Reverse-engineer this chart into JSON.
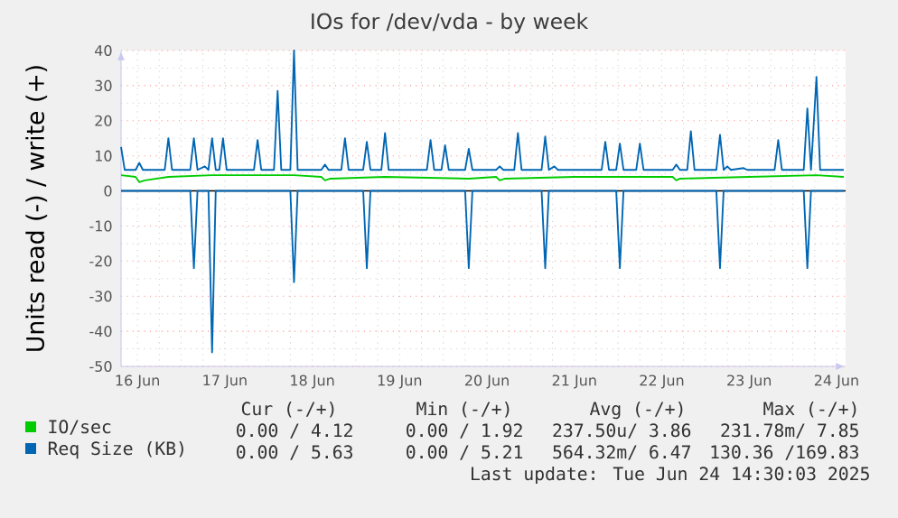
{
  "chart_data": {
    "type": "line",
    "title": "IOs for /dev/vda - by week",
    "ylabel": "Units read (-) / write (+)",
    "xlim": [
      "2025-06-16T07:30",
      "2025-06-24T14:30"
    ],
    "xticks": [
      {
        "value": "2025-06-16T12:00",
        "label": "16 Jun"
      },
      {
        "value": "2025-06-17T12:00",
        "label": "17 Jun"
      },
      {
        "value": "2025-06-18T12:00",
        "label": "18 Jun"
      },
      {
        "value": "2025-06-19T12:00",
        "label": "19 Jun"
      },
      {
        "value": "2025-06-20T12:00",
        "label": "20 Jun"
      },
      {
        "value": "2025-06-21T12:00",
        "label": "21 Jun"
      },
      {
        "value": "2025-06-22T12:00",
        "label": "22 Jun"
      },
      {
        "value": "2025-06-23T12:00",
        "label": "23 Jun"
      },
      {
        "value": "2025-06-24T12:00",
        "label": "24 Jun"
      },
      {
        "value": "2025-06-17T00:00",
        "label": null
      },
      {
        "value": "2025-06-18T00:00",
        "label": null
      },
      {
        "value": "2025-06-19T00:00",
        "label": null
      },
      {
        "value": "2025-06-20T00:00",
        "label": null
      },
      {
        "value": "2025-06-21T00:00",
        "label": null
      },
      {
        "value": "2025-06-22T00:00",
        "label": null
      },
      {
        "value": "2025-06-23T00:00",
        "label": null
      },
      {
        "value": "2025-06-24T00:00",
        "label": null
      }
    ],
    "ylim": [
      -50,
      40
    ],
    "yticks": [
      -50,
      -40,
      -30,
      -20,
      -10,
      0,
      10,
      20,
      30,
      40
    ],
    "grid": true,
    "legend": "bottom",
    "ref_lines": [
      {
        "axis": "y",
        "value": 0,
        "color": "#000000"
      }
    ],
    "series": [
      {
        "name": "IO/sec",
        "color": "#00cc00",
        "x": [
          "2025-06-16T07:30",
          "2025-06-16T11:30",
          "2025-06-16T12:30",
          "2025-06-16T14:00",
          "2025-06-16T20:30",
          "2025-06-17T08:30",
          "2025-06-18T07:00",
          "2025-06-18T14:30",
          "2025-06-18T15:30",
          "2025-06-18T17:00",
          "2025-06-19T08:00",
          "2025-06-20T07:00",
          "2025-06-20T14:30",
          "2025-06-20T15:30",
          "2025-06-20T17:00",
          "2025-06-21T12:00",
          "2025-06-22T15:00",
          "2025-06-22T16:00",
          "2025-06-22T17:00",
          "2025-06-23T12:00",
          "2025-06-24T06:30",
          "2025-06-24T14:00"
        ],
        "values": [
          4.5,
          4,
          2.5,
          3,
          4,
          4.5,
          4.5,
          4,
          3,
          3.5,
          4,
          3.5,
          4,
          3,
          3.5,
          4,
          4,
          3,
          3.5,
          4,
          4.5,
          4
        ]
      },
      {
        "name": "Req Size (KB)",
        "color": "#0066b3",
        "x": [
          "2025-06-16T07:30",
          "2025-06-16T08:30",
          "2025-06-16T11:30",
          "2025-06-16T12:30",
          "2025-06-16T13:30",
          "2025-06-16T19:30",
          "2025-06-16T20:30",
          "2025-06-16T21:30",
          "2025-06-17T02:30",
          "2025-06-17T03:30",
          "2025-06-17T04:30",
          "2025-06-17T06:30",
          "2025-06-17T07:30",
          "2025-06-17T08:30",
          "2025-06-17T09:30",
          "2025-06-17T10:30",
          "2025-06-17T11:30",
          "2025-06-17T12:30",
          "2025-06-17T20:00",
          "2025-06-17T21:00",
          "2025-06-17T22:00",
          "2025-06-18T01:30",
          "2025-06-18T02:30",
          "2025-06-18T03:30",
          "2025-06-18T06:00",
          "2025-06-18T07:00",
          "2025-06-18T08:00",
          "2025-06-18T14:30",
          "2025-06-18T15:30",
          "2025-06-18T16:30",
          "2025-06-18T20:00",
          "2025-06-18T21:00",
          "2025-06-18T22:00",
          "2025-06-19T02:00",
          "2025-06-19T03:00",
          "2025-06-19T04:00",
          "2025-06-19T07:00",
          "2025-06-19T08:00",
          "2025-06-19T09:00",
          "2025-06-19T19:30",
          "2025-06-19T20:30",
          "2025-06-19T21:30",
          "2025-06-19T23:30",
          "2025-06-20T00:30",
          "2025-06-20T01:30",
          "2025-06-20T06:00",
          "2025-06-20T07:00",
          "2025-06-20T08:00",
          "2025-06-20T14:30",
          "2025-06-20T15:30",
          "2025-06-20T16:30",
          "2025-06-20T19:30",
          "2025-06-20T20:30",
          "2025-06-20T21:30",
          "2025-06-21T03:00",
          "2025-06-21T04:00",
          "2025-06-21T05:00",
          "2025-06-21T06:30",
          "2025-06-21T07:30",
          "2025-06-21T19:30",
          "2025-06-21T20:30",
          "2025-06-21T21:30",
          "2025-06-21T23:30",
          "2025-06-22T00:30",
          "2025-06-22T01:30",
          "2025-06-22T05:00",
          "2025-06-22T06:00",
          "2025-06-22T07:00",
          "2025-06-22T15:00",
          "2025-06-22T16:00",
          "2025-06-22T17:00",
          "2025-06-22T19:00",
          "2025-06-22T20:00",
          "2025-06-22T21:00",
          "2025-06-23T03:00",
          "2025-06-23T04:00",
          "2025-06-23T05:00",
          "2025-06-23T06:00",
          "2025-06-23T07:00",
          "2025-06-23T10:30",
          "2025-06-23T11:30",
          "2025-06-23T19:00",
          "2025-06-23T20:00",
          "2025-06-23T21:00",
          "2025-06-24T03:00",
          "2025-06-24T04:00",
          "2025-06-24T05:00",
          "2025-06-24T06:30",
          "2025-06-24T07:30",
          "2025-06-24T14:00"
        ],
        "values": [
          12.5,
          6,
          6,
          8,
          6,
          6,
          15,
          6,
          6,
          15,
          6,
          7,
          6,
          15,
          6,
          6,
          15,
          6,
          6,
          14.5,
          6,
          6,
          28.5,
          6,
          6,
          40,
          6,
          6,
          7.5,
          6,
          6,
          15,
          6,
          6,
          14,
          6,
          6,
          16.5,
          6,
          6,
          14.5,
          6,
          6,
          13,
          6,
          6,
          12,
          6,
          6,
          7,
          6,
          6,
          16.5,
          6,
          6,
          15.5,
          6,
          7,
          6,
          6,
          14,
          6,
          6,
          13.5,
          6,
          6,
          13.5,
          6,
          6,
          7.5,
          6,
          6,
          17,
          6,
          6,
          16,
          6,
          7,
          6,
          6.5,
          6,
          6,
          14.5,
          6,
          6,
          23.5,
          6,
          32.5,
          6,
          6
        ]
      },
      {
        "color": "#0066b3",
        "x": [
          "2025-06-16T07:30",
          "2025-06-17T02:30",
          "2025-06-17T03:30",
          "2025-06-17T04:30",
          "2025-06-17T07:30",
          "2025-06-17T08:30",
          "2025-06-17T09:30",
          "2025-06-18T06:00",
          "2025-06-18T07:00",
          "2025-06-18T08:00",
          "2025-06-19T02:00",
          "2025-06-19T03:00",
          "2025-06-19T04:00",
          "2025-06-20T06:00",
          "2025-06-20T07:00",
          "2025-06-20T08:00",
          "2025-06-21T03:00",
          "2025-06-21T04:00",
          "2025-06-21T05:00",
          "2025-06-21T23:30",
          "2025-06-22T00:30",
          "2025-06-22T01:30",
          "2025-06-23T03:00",
          "2025-06-23T04:00",
          "2025-06-23T05:00",
          "2025-06-24T03:00",
          "2025-06-24T04:00",
          "2025-06-24T05:00",
          "2025-06-24T14:00"
        ],
        "values": [
          0,
          0,
          -22,
          0,
          0,
          -46,
          0,
          0,
          -26,
          0,
          0,
          -22,
          0,
          0,
          -22,
          0,
          0,
          -22,
          0,
          0,
          -22,
          0,
          0,
          -22,
          0,
          0,
          -22,
          0,
          0
        ]
      }
    ],
    "annotations": [
      "Cur (-/+)",
      "Min (-/+)",
      "Avg (-/+)",
      "Max (-/+)",
      "0.00 / 4.12",
      "0.00 / 1.92",
      "237.50u/ 3.86",
      "231.78m/ 7.85",
      "0.00 / 5.63",
      "0.00 / 5.21",
      "564.32m/ 6.47",
      "130.36 /169.83",
      "Last update: Tue Jun 24 14:30:03 2025"
    ]
  }
}
